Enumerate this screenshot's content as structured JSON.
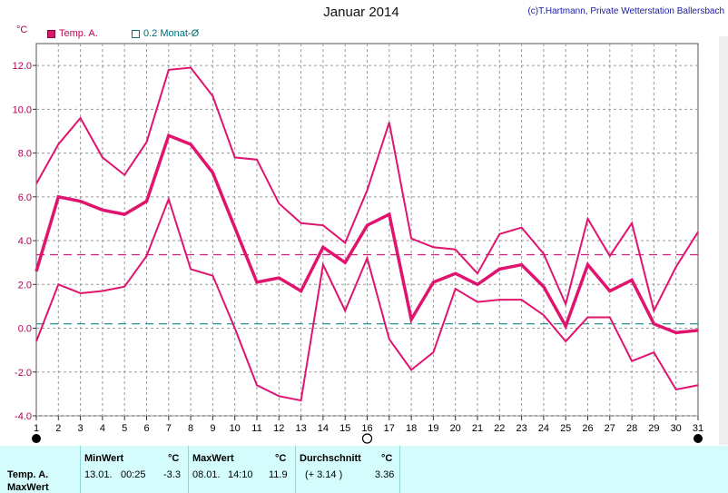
{
  "title": "Januar 2014",
  "copyright": "(c)T.Hartmann, Private Wetterstation Ballersbach",
  "unit": "°C",
  "legend": {
    "series1": "Temp. A.",
    "series2": "0.2 Monat-Ø"
  },
  "colors": {
    "temp": "#e0146f",
    "avg_line": "#d0207a",
    "monthly_avg_line": "#0e8a8a",
    "grid": "#9a9a9a",
    "panel_bg": "#d4fcfc"
  },
  "chart_data": {
    "type": "line",
    "x": [
      1,
      2,
      3,
      4,
      5,
      6,
      7,
      8,
      9,
      10,
      11,
      12,
      13,
      14,
      15,
      16,
      17,
      18,
      19,
      20,
      21,
      22,
      23,
      24,
      25,
      26,
      27,
      28,
      29,
      30,
      31
    ],
    "series": [
      {
        "values": [
          6.6,
          8.4,
          9.6,
          7.8,
          7.0,
          8.5,
          11.8,
          11.9,
          10.6,
          7.8,
          7.7,
          5.7,
          4.8,
          4.7,
          3.9,
          6.3,
          9.4,
          4.1,
          3.7,
          3.6,
          2.5,
          4.3,
          4.6,
          3.4,
          1.1,
          5.0,
          3.3,
          4.8,
          0.8,
          2.8,
          4.4
        ]
      },
      {
        "values": [
          2.6,
          6.0,
          5.8,
          5.4,
          5.2,
          5.8,
          8.8,
          8.4,
          7.1,
          4.6,
          2.1,
          2.3,
          1.7,
          3.7,
          3.0,
          4.7,
          5.2,
          0.4,
          2.1,
          2.5,
          2.0,
          2.7,
          2.9,
          1.9,
          0.1,
          2.9,
          1.7,
          2.2,
          0.2,
          -0.2,
          -0.1
        ]
      },
      {
        "values": [
          -0.6,
          2.0,
          1.6,
          1.7,
          1.9,
          3.3,
          5.9,
          2.7,
          2.4,
          0.0,
          -2.6,
          -3.1,
          -3.3,
          2.9,
          0.8,
          3.2,
          -0.5,
          -1.9,
          -1.1,
          1.8,
          1.2,
          1.3,
          1.3,
          0.6,
          -0.6,
          0.5,
          0.5,
          -1.5,
          -1.1,
          -2.8,
          -2.6
        ]
      }
    ],
    "reference_lines": [
      {
        "value": 3.36
      },
      {
        "value": 0.2
      }
    ],
    "ylim": [
      -4,
      13
    ],
    "yticks": [
      "12.0",
      "10.0",
      "8.0",
      "6.0",
      "4.0",
      "2.0",
      "0.0",
      "-2.0",
      "-4.0"
    ],
    "xticks": [
      "1",
      "2",
      "3",
      "4",
      "5",
      "6",
      "7",
      "8",
      "9",
      "10",
      "11",
      "12",
      "13",
      "14",
      "15",
      "16",
      "17",
      "18",
      "19",
      "20",
      "21",
      "22",
      "23",
      "24",
      "25",
      "26",
      "27",
      "28",
      "29",
      "30",
      "31"
    ],
    "grid": true,
    "moon_phases": [
      {
        "day": 1,
        "phase": "new"
      },
      {
        "day": 16,
        "phase": "full"
      },
      {
        "day": 31,
        "phase": "new"
      }
    ]
  },
  "stats": {
    "row_labels": [
      "Temp. A.",
      "MaxWert"
    ],
    "min": {
      "header": "MinWert",
      "unit": "°C",
      "date": "13.01.",
      "time": "00:25",
      "value": "-3.3"
    },
    "max": {
      "header": "MaxWert",
      "unit": "°C",
      "date": "08.01.",
      "time": "14:10",
      "value": "11.9"
    },
    "avg": {
      "header": "Durchschnitt",
      "unit": "°C",
      "deviation": "(+ 3.14 )",
      "value": "3.36"
    }
  }
}
